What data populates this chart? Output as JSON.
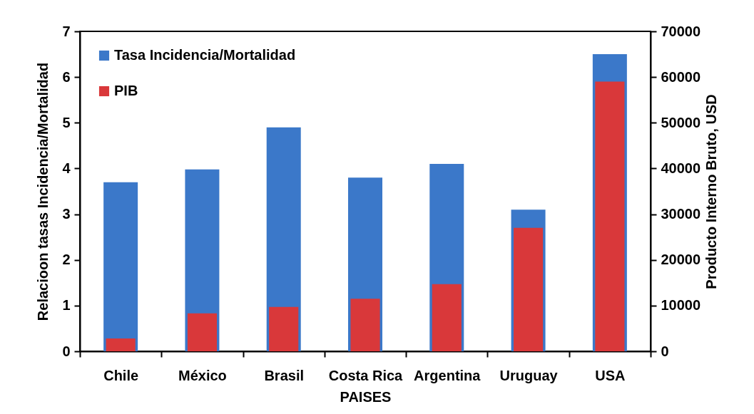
{
  "chart_data": {
    "type": "bar",
    "xlabel": "PAISES",
    "ylabel": "Relacioon tasas Incidencia/Mortalidad",
    "y2label": "Producto Interno Bruto, USD",
    "categories": [
      "Chile",
      "México",
      "Brasil",
      "Costa Rica",
      "Argentina",
      "Uruguay",
      "USA"
    ],
    "series": [
      {
        "name": "Tasa Incidencia/Mortalidad",
        "color": "#3b78c9",
        "values": [
          3.7,
          3.98,
          4.9,
          3.8,
          4.1,
          3.1,
          6.5
        ]
      },
      {
        "name": "PIB",
        "color": "#d9383a",
        "axis": "y2",
        "values": [
          2800,
          8300,
          9700,
          11500,
          14700,
          27000,
          59000
        ]
      }
    ],
    "ylim": [
      0,
      7
    ],
    "yticks": [
      0,
      1,
      2,
      3,
      4,
      5,
      6,
      7
    ],
    "y2lim": [
      0,
      70000
    ],
    "y2ticks": [
      0,
      10000,
      20000,
      30000,
      40000,
      50000,
      60000,
      70000
    ],
    "legend": "top left",
    "grid": false
  }
}
